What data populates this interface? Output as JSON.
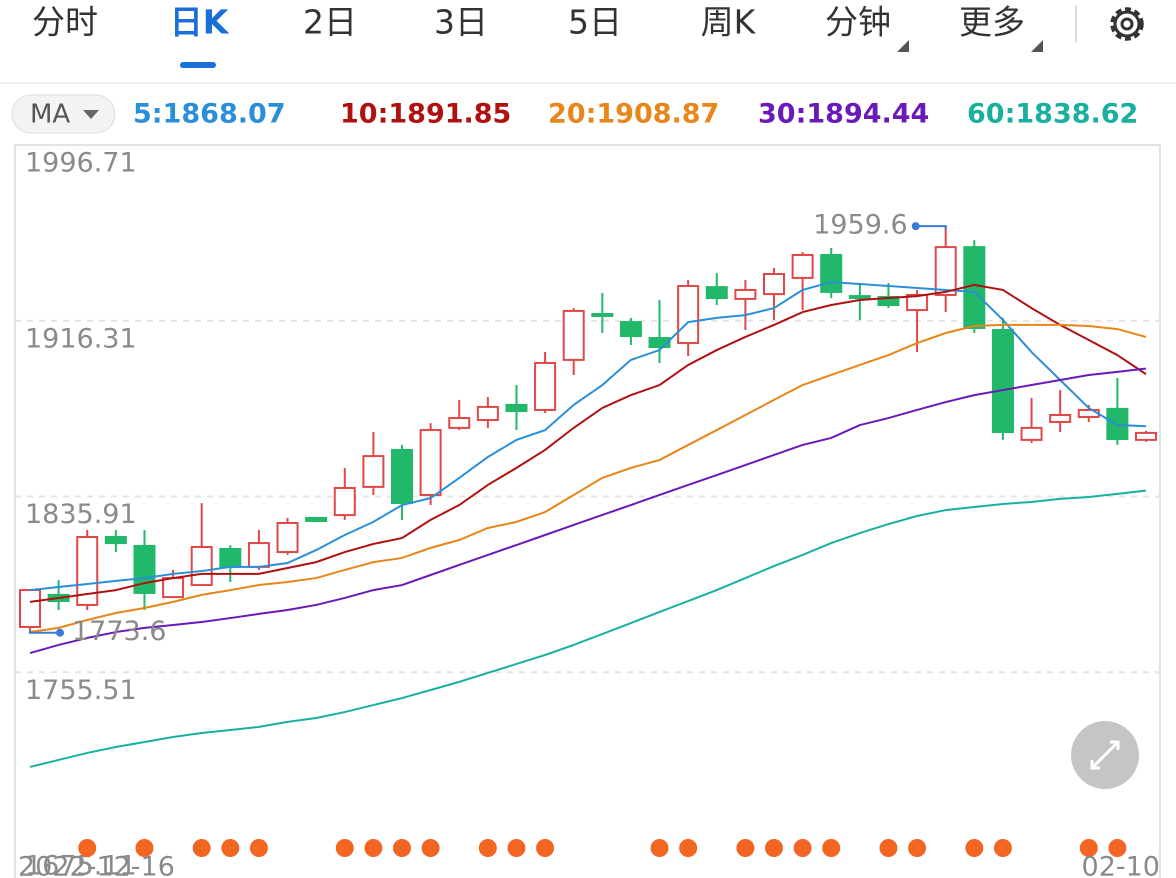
{
  "header": {
    "tabs": [
      "分时",
      "日K",
      "2日",
      "3日",
      "5日",
      "周K",
      "分钟",
      "更多"
    ],
    "active_tab": 1,
    "ma_selector": "MA"
  },
  "chart_data": {
    "type": "candlestick",
    "categories": [
      "2022-12-16",
      null,
      null,
      null,
      null,
      null,
      null,
      null,
      null,
      null,
      null,
      null,
      null,
      null,
      null,
      null,
      null,
      null,
      null,
      null,
      null,
      null,
      null,
      null,
      null,
      null,
      null,
      null,
      null,
      null,
      null,
      null,
      null,
      null,
      null,
      null,
      null,
      null,
      null,
      "02-10"
    ],
    "ohlc": {
      "open": [
        1776.2,
        1790.9,
        1786.3,
        1817.4,
        1813.3,
        1789.9,
        1795.4,
        1811.9,
        1803.7,
        1810.5,
        1826.1,
        1827.4,
        1840.3,
        1857.2,
        1836.6,
        1867.3,
        1870.9,
        1877.8,
        1875.5,
        1898.4,
        1919.4,
        1915.7,
        1908.4,
        1906.1,
        1931.7,
        1926.3,
        1928.5,
        1935.9,
        1946.4,
        1927.6,
        1927.2,
        1921.2,
        1928.1,
        1950.0,
        1912.1,
        1861.8,
        1870.0,
        1872.3,
        1876.0,
        1861.8
      ],
      "high": [
        1793.1,
        1797.7,
        1820.6,
        1820.6,
        1820.6,
        1802.3,
        1832.9,
        1813.7,
        1820.6,
        1826.1,
        1826.5,
        1849.0,
        1865.4,
        1859.5,
        1869.5,
        1880.1,
        1881.4,
        1886.9,
        1902.0,
        1922.1,
        1929.0,
        1917.6,
        1925.8,
        1934.9,
        1938.1,
        1934.9,
        1940.4,
        1947.7,
        1949.6,
        1932.7,
        1933.6,
        1930.4,
        1959.6,
        1953.2,
        1917.6,
        1881.0,
        1884.6,
        1877.8,
        1890.1,
        1866.0
      ],
      "low": [
        1773.6,
        1784.0,
        1784.0,
        1810.5,
        1784.0,
        1789.9,
        1795.4,
        1796.8,
        1802.3,
        1809.2,
        1824.3,
        1825.2,
        1836.6,
        1825.2,
        1832.0,
        1866.3,
        1867.3,
        1866.3,
        1874.1,
        1891.5,
        1910.7,
        1905.2,
        1897.0,
        1900.2,
        1923.5,
        1912.1,
        1916.7,
        1921.2,
        1926.7,
        1916.7,
        1922.1,
        1902.0,
        1920.3,
        1910.7,
        1861.8,
        1860.4,
        1865.4,
        1870.0,
        1859.5,
        1860.9
      ],
      "close": [
        1793.1,
        1788.1,
        1817.4,
        1814.6,
        1791.8,
        1798.6,
        1812.8,
        1803.7,
        1814.6,
        1823.8,
        1824.7,
        1839.8,
        1854.4,
        1832.9,
        1866.3,
        1871.8,
        1876.9,
        1875.0,
        1897.0,
        1920.8,
        1918.5,
        1909.3,
        1904.3,
        1932.2,
        1926.7,
        1930.4,
        1937.7,
        1946.4,
        1929.5,
        1926.7,
        1923.5,
        1928.1,
        1950.0,
        1913.0,
        1865.4,
        1867.3,
        1873.2,
        1875.5,
        1862.2,
        1865.0
      ]
    },
    "up_color": "#e04848",
    "down_color": "#22b86a",
    "annotations": [
      {
        "day": 32,
        "field": "high"
      },
      {
        "day": 0,
        "field": "low"
      }
    ],
    "ma": [
      {
        "label": "5:1868.07",
        "color": "#2a8fd8",
        "values": [
          1793.1,
          1794.5,
          1795.9,
          1797.3,
          1798.6,
          1800.5,
          1801.8,
          1803.7,
          1803.7,
          1805.5,
          1811.4,
          1818.3,
          1824.3,
          1832.0,
          1835.2,
          1844.4,
          1854.0,
          1861.8,
          1866.3,
          1877.8,
          1886.9,
          1898.4,
          1902.9,
          1915.7,
          1917.6,
          1918.9,
          1922.1,
          1930.4,
          1934.0,
          1933.1,
          1932.2,
          1931.3,
          1930.4,
          1929.5,
          1916.7,
          1902.0,
          1889.2,
          1876.4,
          1868.6,
          1868.07
        ]
      },
      {
        "label": "10:1891.85",
        "color": "#b01010",
        "values": [
          1787.7,
          1789.5,
          1791.3,
          1793.1,
          1796.3,
          1798.6,
          1800.5,
          1800.5,
          1800.5,
          1803.2,
          1805.9,
          1810.5,
          1814.2,
          1816.9,
          1825.2,
          1832.0,
          1841.2,
          1849.0,
          1857.2,
          1867.3,
          1876.4,
          1882.3,
          1886.9,
          1896.1,
          1902.9,
          1908.9,
          1914.4,
          1920.3,
          1923.5,
          1925.8,
          1926.7,
          1927.6,
          1929.5,
          1932.7,
          1930.4,
          1922.1,
          1914.4,
          1907.5,
          1900.6,
          1891.85
        ]
      },
      {
        "label": "20:1908.87",
        "color": "#e8861a",
        "values": [
          1773.9,
          1775.8,
          1779.4,
          1782.6,
          1784.9,
          1787.7,
          1790.9,
          1793.1,
          1795.4,
          1796.8,
          1798.6,
          1802.3,
          1805.9,
          1807.8,
          1812.4,
          1816.0,
          1821.5,
          1824.3,
          1828.8,
          1836.6,
          1844.4,
          1849.0,
          1852.6,
          1859.5,
          1866.3,
          1873.2,
          1880.1,
          1886.9,
          1891.5,
          1896.1,
          1900.6,
          1906.1,
          1910.7,
          1913.9,
          1914.4,
          1914.4,
          1914.4,
          1913.9,
          1912.5,
          1908.87
        ]
      },
      {
        "label": "30:1894.44",
        "color": "#6a1ab8",
        "values": [
          1764.3,
          1768.0,
          1771.2,
          1773.9,
          1775.8,
          1777.1,
          1778.5,
          1780.3,
          1782.2,
          1784.0,
          1786.3,
          1789.5,
          1793.1,
          1795.4,
          1800.0,
          1804.6,
          1809.2,
          1813.7,
          1818.3,
          1822.9,
          1827.5,
          1832.0,
          1836.6,
          1841.2,
          1845.7,
          1850.3,
          1854.9,
          1859.5,
          1862.7,
          1868.6,
          1871.8,
          1875.5,
          1879.1,
          1882.3,
          1884.6,
          1886.9,
          1889.2,
          1891.5,
          1892.9,
          1894.44
        ]
      },
      {
        "label": "60:1838.62",
        "color": "#1ab0a0",
        "values": [
          1712.2,
          1715.4,
          1718.6,
          1721.3,
          1723.6,
          1725.9,
          1727.7,
          1729.1,
          1730.5,
          1732.8,
          1734.6,
          1737.3,
          1740.5,
          1743.7,
          1747.4,
          1751.1,
          1755.2,
          1759.3,
          1763.4,
          1768.0,
          1773.0,
          1778.0,
          1783.1,
          1788.1,
          1793.1,
          1798.6,
          1804.1,
          1809.2,
          1814.6,
          1819.2,
          1823.3,
          1827.0,
          1829.7,
          1831.1,
          1832.5,
          1833.4,
          1834.8,
          1835.7,
          1837.1,
          1838.62
        ]
      }
    ],
    "signals": {
      "color": "#f26522",
      "days": [
        2,
        4,
        6,
        7,
        8,
        11,
        12,
        13,
        14,
        16,
        17,
        18,
        22,
        23,
        25,
        26,
        27,
        28,
        30,
        31,
        33,
        34,
        37,
        38
      ]
    },
    "ylim": [
      1675.11,
      1996.71
    ],
    "yticks": [
      1996.71,
      1916.31,
      1835.91,
      1755.51,
      1675.11
    ],
    "grid": true
  }
}
